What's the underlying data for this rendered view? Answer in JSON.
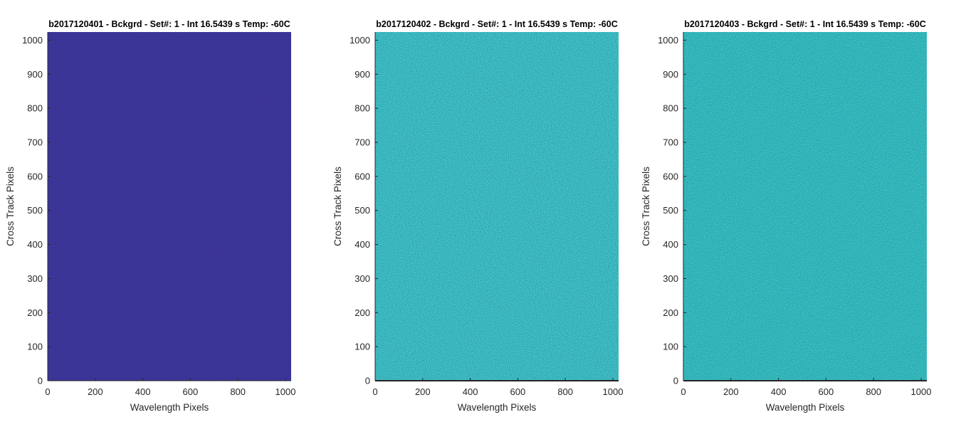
{
  "chart_data": [
    {
      "type": "heatmap",
      "title": "b2017120401 - Bckgrd - Set#: 1 - Int 16.5439 s Temp: -60C",
      "xlabel": "Wavelength Pixels",
      "ylabel": "Cross Track Pixels",
      "xlim": [
        0,
        1024
      ],
      "ylim": [
        0,
        1024
      ],
      "xticks": [
        0,
        200,
        400,
        600,
        800,
        1000
      ],
      "yticks": [
        0,
        100,
        200,
        300,
        400,
        500,
        600,
        700,
        800,
        900,
        1000
      ],
      "grid": false,
      "colors": {
        "base": "#352E95",
        "noise_light": "#3C3AA8",
        "noise_dark": "#302886"
      }
    },
    {
      "type": "heatmap",
      "title": "b2017120402 - Bckgrd - Set#: 1 - Int 16.5439 s Temp: -60C",
      "xlabel": "Wavelength Pixels",
      "ylabel": "Cross Track Pixels",
      "xlim": [
        0,
        1024
      ],
      "ylim": [
        0,
        1024
      ],
      "xticks": [
        0,
        200,
        400,
        600,
        800,
        1000
      ],
      "yticks": [
        0,
        100,
        200,
        300,
        400,
        500,
        600,
        700,
        800,
        900,
        1000
      ],
      "grid": false,
      "colors": {
        "base": "#21A8B8",
        "noise_light": "#3DBA9E",
        "noise_dark": "#1A98C6"
      }
    },
    {
      "type": "heatmap",
      "title": "b2017120403 - Bckgrd - Set#: 1 - Int 16.5439 s Temp: -60C",
      "xlabel": "Wavelength Pixels",
      "ylabel": "Cross Track Pixels",
      "xlim": [
        0,
        1024
      ],
      "ylim": [
        0,
        1024
      ],
      "xticks": [
        0,
        200,
        400,
        600,
        800,
        1000
      ],
      "yticks": [
        0,
        100,
        200,
        300,
        400,
        500,
        600,
        700,
        800,
        900,
        1000
      ],
      "grid": false,
      "colors": {
        "base": "#1EAAB3",
        "noise_light": "#36B6A0",
        "noise_dark": "#1A9CC0"
      }
    }
  ]
}
